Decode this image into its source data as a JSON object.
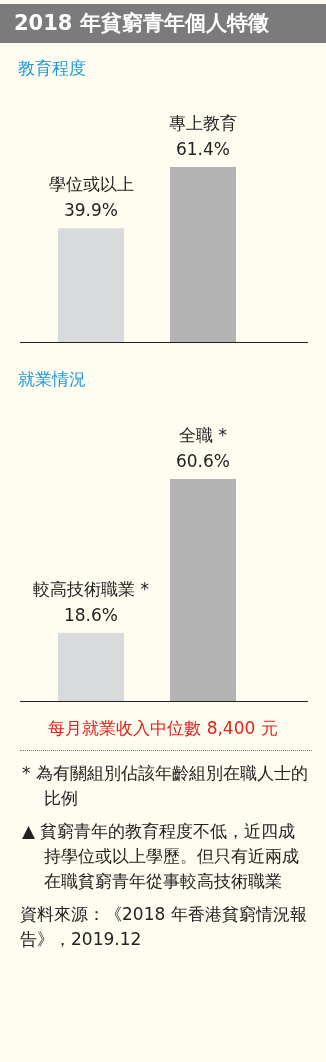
{
  "chart_data": [
    {
      "type": "bar",
      "title": "2018 年貧窮青年個人特徵",
      "subtitle": "教育程度",
      "categories": [
        "學位或以上",
        "專上教育"
      ],
      "values": [
        39.9,
        61.4
      ],
      "value_labels": [
        "39.9%",
        "61.4%"
      ],
      "colors": [
        "#d9dadb",
        "#b3b3b3"
      ]
    },
    {
      "type": "bar",
      "title": "就業情況",
      "categories": [
        "較高技術職業 *",
        "全職 *"
      ],
      "values": [
        18.6,
        60.6
      ],
      "value_labels": [
        "18.6%",
        "60.6%"
      ],
      "colors": [
        "#d9dadb",
        "#b3b3b3"
      ],
      "annotations": [
        "每月就業收入中位數  8,400 元",
        "* 為有關組別佔該年齡組別在職人士的比例",
        "▲ 貧窮青年的教育程度不低，近四成持學位或以上學歷。但只有近兩成在職貧窮青年從事較高技術職業",
        "資料來源：《2018 年香港貧窮情況報告》，2019.12"
      ]
    }
  ]
}
